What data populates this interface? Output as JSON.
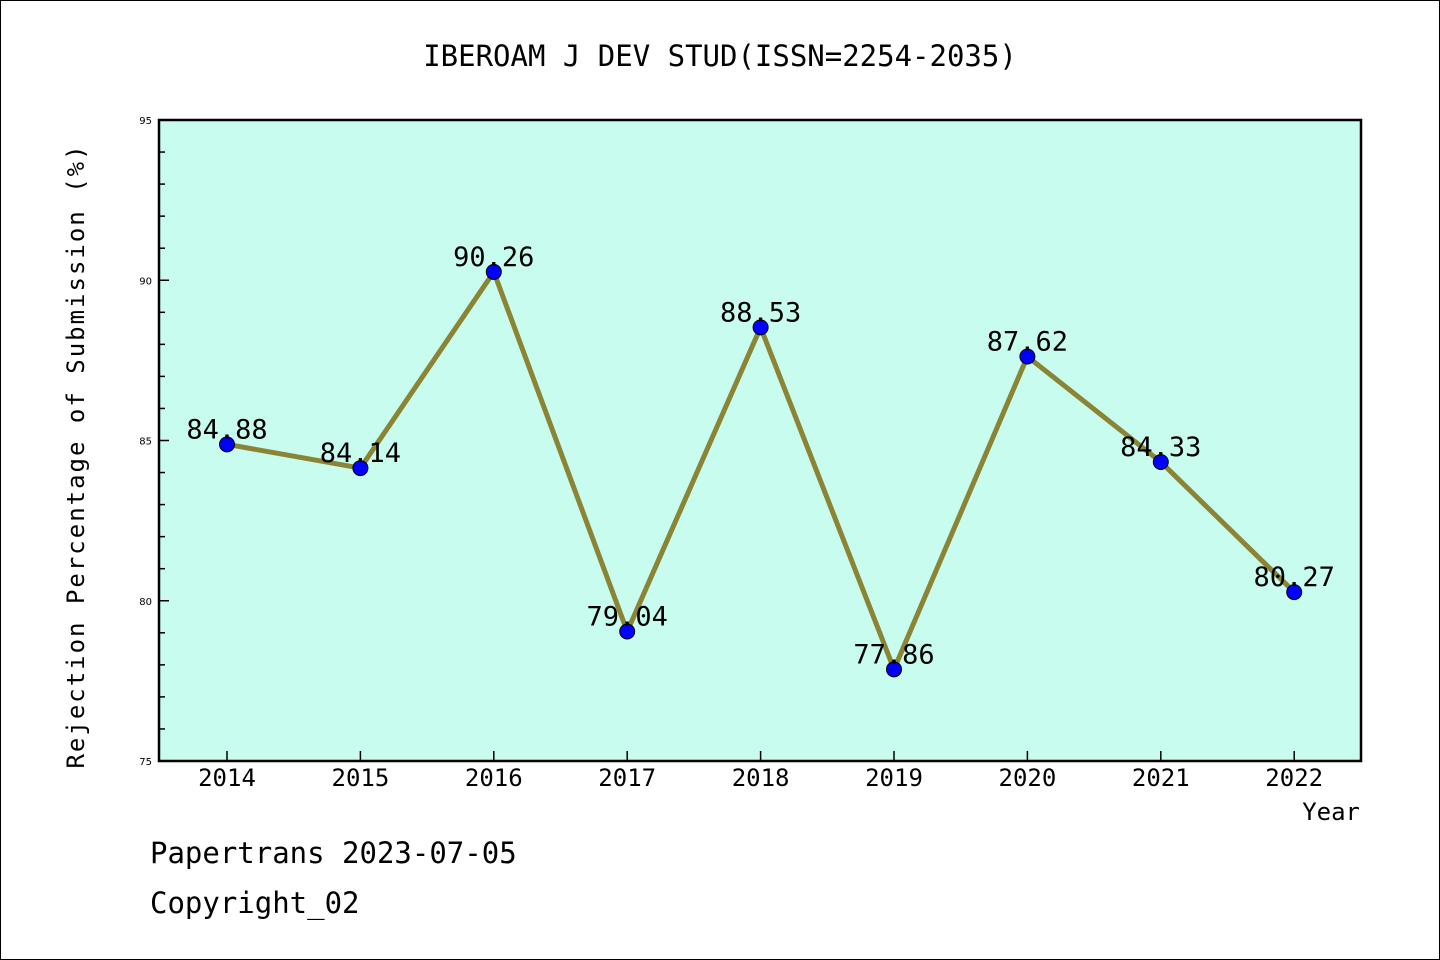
{
  "chart_data": {
    "type": "line",
    "title": "IBEROAM J DEV STUD(ISSN=2254-2035)",
    "xlabel": "Year",
    "ylabel": "Rejection Percentage of Submission (%)",
    "categories": [
      "2014",
      "2015",
      "2016",
      "2017",
      "2018",
      "2019",
      "2020",
      "2021",
      "2022"
    ],
    "values": [
      84.88,
      84.14,
      90.26,
      79.04,
      88.53,
      77.86,
      87.62,
      84.33,
      80.27
    ],
    "data_labels": [
      "84.88",
      "84.14",
      "90.26",
      "79.04",
      "88.53",
      "77.86",
      "87.62",
      "84.33",
      "80.27"
    ],
    "ylim": [
      75,
      95
    ],
    "yticks": [
      "75",
      "80",
      "85",
      "90",
      "95"
    ],
    "grid": false,
    "colors": {
      "plot_background": "#c8fcee",
      "line": "#8a8434",
      "marker": "#0000ff"
    }
  },
  "footer": {
    "line1": "Papertrans 2023-07-05",
    "line2": "Copyright_02"
  }
}
